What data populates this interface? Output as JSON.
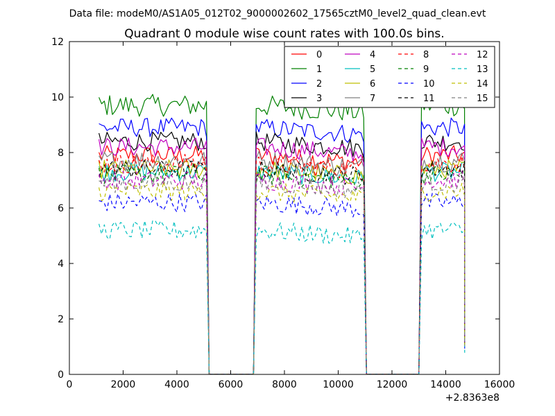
{
  "figure": {
    "suptitle": "Data file: modeM0/AS1A05_012T02_9000002602_17565cztM0_level2_quad_clean.evt"
  },
  "chart_data": {
    "type": "line",
    "title": "Quadrant 0 module wise count rates with 100.0s bins.",
    "xlabel": "",
    "ylabel": "",
    "xlim": [
      0,
      16000
    ],
    "ylim": [
      0,
      12
    ],
    "xticks": [
      0,
      2000,
      4000,
      6000,
      8000,
      10000,
      12000,
      14000,
      16000
    ],
    "xtick_labels": [
      "0",
      "2000",
      "4000",
      "6000",
      "8000",
      "10000",
      "12000",
      "14000",
      "16000"
    ],
    "yticks": [
      0,
      2,
      4,
      6,
      8,
      10,
      12
    ],
    "ytick_labels": [
      "0",
      "2",
      "4",
      "6",
      "8",
      "10",
      "12"
    ],
    "x_offset_label": "+2.8363e8",
    "grid": false,
    "legend_position": "top-right",
    "legend_columns": 4,
    "segments": [
      [
        1100,
        5100
      ],
      [
        6950,
        10950
      ],
      [
        13100,
        14700
      ]
    ],
    "series": [
      {
        "name": "0",
        "color": "#ff0000",
        "dash": "solid",
        "level": 7.9,
        "noise": 0.35
      },
      {
        "name": "1",
        "color": "#008000",
        "dash": "solid",
        "level": 9.7,
        "noise": 0.4
      },
      {
        "name": "2",
        "color": "#0000ff",
        "dash": "solid",
        "level": 8.9,
        "noise": 0.35
      },
      {
        "name": "3",
        "color": "#000000",
        "dash": "solid",
        "level": 8.4,
        "noise": 0.35
      },
      {
        "name": "4",
        "color": "#bf00bf",
        "dash": "solid",
        "level": 8.2,
        "noise": 0.35
      },
      {
        "name": "5",
        "color": "#00bfbf",
        "dash": "solid",
        "level": 7.3,
        "noise": 0.35
      },
      {
        "name": "6",
        "color": "#bfbf00",
        "dash": "solid",
        "level": 7.4,
        "noise": 0.35
      },
      {
        "name": "7",
        "color": "#808080",
        "dash": "solid",
        "level": 7.7,
        "noise": 0.4
      },
      {
        "name": "8",
        "color": "#ff0000",
        "dash": "dashed",
        "level": 7.6,
        "noise": 0.35
      },
      {
        "name": "9",
        "color": "#008000",
        "dash": "dashed",
        "level": 7.2,
        "noise": 0.35
      },
      {
        "name": "10",
        "color": "#0000ff",
        "dash": "dashed",
        "level": 6.2,
        "noise": 0.35
      },
      {
        "name": "11",
        "color": "#000000",
        "dash": "dashed",
        "level": 7.4,
        "noise": 0.35
      },
      {
        "name": "12",
        "color": "#bf00bf",
        "dash": "dashed",
        "level": 7.0,
        "noise": 0.35
      },
      {
        "name": "13",
        "color": "#00bfbf",
        "dash": "dashed",
        "level": 5.2,
        "noise": 0.35
      },
      {
        "name": "14",
        "color": "#bfbf00",
        "dash": "dashed",
        "level": 6.6,
        "noise": 0.35
      },
      {
        "name": "15",
        "color": "#808080",
        "dash": "dashed",
        "level": 6.9,
        "noise": 0.35
      }
    ]
  }
}
